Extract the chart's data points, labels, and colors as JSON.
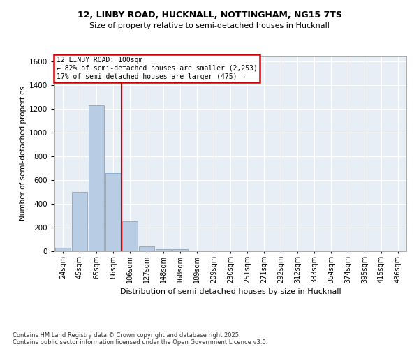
{
  "title_line1": "12, LINBY ROAD, HUCKNALL, NOTTINGHAM, NG15 7TS",
  "title_line2": "Size of property relative to semi-detached houses in Hucknall",
  "xlabel": "Distribution of semi-detached houses by size in Hucknall",
  "ylabel": "Number of semi-detached properties",
  "categories": [
    "24sqm",
    "45sqm",
    "65sqm",
    "86sqm",
    "106sqm",
    "127sqm",
    "148sqm",
    "168sqm",
    "189sqm",
    "209sqm",
    "230sqm",
    "251sqm",
    "271sqm",
    "292sqm",
    "312sqm",
    "333sqm",
    "354sqm",
    "374sqm",
    "395sqm",
    "415sqm",
    "436sqm"
  ],
  "values": [
    30,
    500,
    1230,
    660,
    255,
    40,
    20,
    15,
    0,
    0,
    0,
    0,
    0,
    0,
    0,
    0,
    0,
    0,
    0,
    0,
    0
  ],
  "bar_color": "#b8cce4",
  "bar_edge_color": "#7ba7cc",
  "vline_index": 4,
  "annotation_title": "12 LINBY ROAD: 100sqm",
  "annotation_line1": "← 82% of semi-detached houses are smaller (2,253)",
  "annotation_line2": "17% of semi-detached houses are larger (475) →",
  "annotation_box_color": "#ffffff",
  "annotation_box_edge": "#cc0000",
  "vline_color": "#cc0000",
  "ylim": [
    0,
    1650
  ],
  "yticks": [
    0,
    200,
    400,
    600,
    800,
    1000,
    1200,
    1400,
    1600
  ],
  "background_color": "#e8eef5",
  "grid_color": "#ffffff",
  "title_fontsize": 9,
  "subtitle_fontsize": 8,
  "footer": "Contains HM Land Registry data © Crown copyright and database right 2025.\nContains public sector information licensed under the Open Government Licence v3.0."
}
